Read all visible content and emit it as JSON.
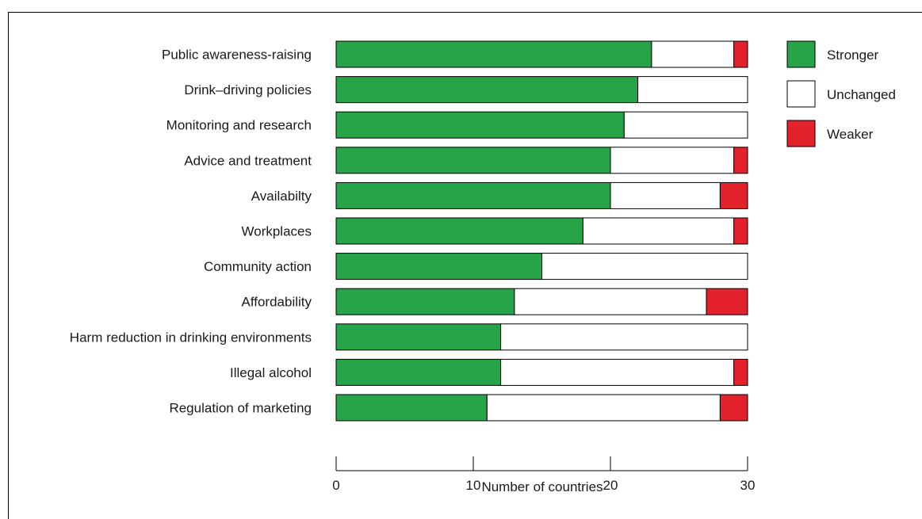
{
  "chart_data": {
    "type": "bar",
    "orientation": "horizontal",
    "stacked": true,
    "categories": [
      "Public awareness-raising",
      "Drink–driving policies",
      "Monitoring and research",
      "Advice and treatment",
      "Availabilty",
      "Workplaces",
      "Community action",
      "Affordability",
      "Harm reduction in drinking environments",
      "Illegal alcohol",
      "Regulation of marketing"
    ],
    "series": [
      {
        "name": "Stronger",
        "color": "#27a348",
        "values": [
          23,
          22,
          21,
          20,
          20,
          18,
          15,
          13,
          12,
          12,
          11
        ]
      },
      {
        "name": "Unchanged",
        "color": "#ffffff",
        "values": [
          6,
          8,
          9,
          9,
          8,
          11,
          15,
          14,
          18,
          17,
          17
        ]
      },
      {
        "name": "Weaker",
        "color": "#e4222b",
        "values": [
          1,
          0,
          0,
          1,
          2,
          1,
          0,
          3,
          0,
          1,
          2
        ]
      }
    ],
    "xlabel": "Number of countries",
    "xlim": [
      0,
      30
    ],
    "xticks": [
      0,
      10,
      20,
      30
    ],
    "grid": false,
    "legend_position": "top-right"
  }
}
